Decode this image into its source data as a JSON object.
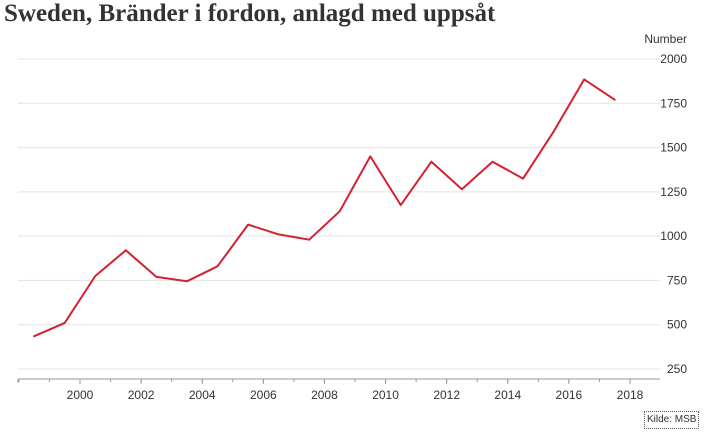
{
  "chart_data": {
    "type": "line",
    "title": "Sweden, Bränder i fordon, anlagd med uppsåt",
    "ylabel": "Number",
    "xlabel": "",
    "ylim": [
      200,
      2050
    ],
    "y_ticks": [
      250,
      500,
      750,
      1000,
      1250,
      1500,
      1750,
      2000
    ],
    "x_range": [
      1997.5,
      2018.5
    ],
    "x_ticks": [
      2000,
      2002,
      2004,
      2006,
      2008,
      2010,
      2012,
      2014,
      2016,
      2018
    ],
    "grid": true,
    "colors": {
      "line": "#d42030"
    },
    "series": [
      {
        "x": [
          1998.5,
          1999.5,
          2000.5,
          2001.5,
          2002.5,
          2003.5,
          2004.5,
          2005.5,
          2006.5,
          2007.5,
          2008.5,
          2009.5,
          2010.5,
          2011.5,
          2012.5,
          2013.5,
          2014.5,
          2015.5,
          2016.5,
          2017.5
        ],
        "y": [
          435,
          510,
          775,
          920,
          770,
          745,
          830,
          1065,
          1010,
          980,
          1140,
          1450,
          1175,
          1420,
          1265,
          1420,
          1325,
          1590,
          1885,
          1770
        ]
      }
    ]
  },
  "source": "Kilde: MSB"
}
